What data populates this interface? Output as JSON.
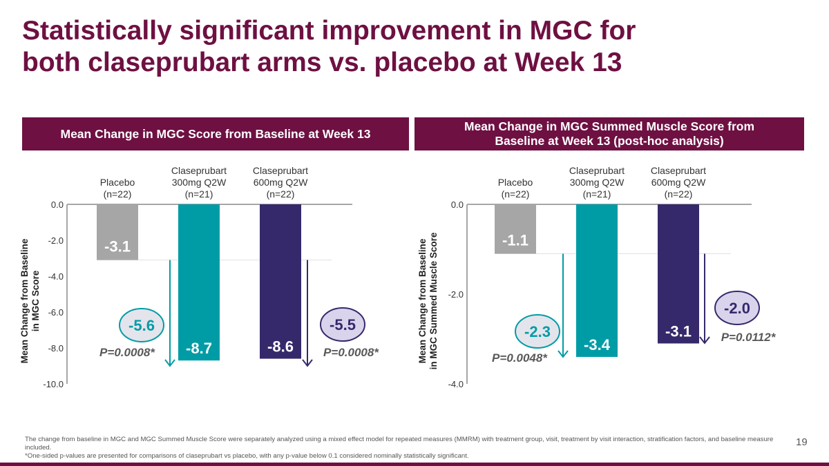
{
  "slide": {
    "title_line1": "Statistically significant improvement in MGC for",
    "title_line2": "both claseprubart arms vs. placebo at Week 13",
    "page_number": "19",
    "footnote_1": "The change from baseline in MGC and MGC Summed Muscle Score were separately analyzed using a mixed effect model for repeated measures (MMRM) with treatment group, visit, treatment by visit interaction, stratification factors, and baseline measure included.",
    "footnote_2": "*One-sided p-values are presented for comparisons of claseprubart vs placebo, with any p-value below 0.1 considered nominally statistically significant.",
    "brand_color": "#6e1042"
  },
  "chart_data": [
    {
      "type": "bar",
      "title": "Mean Change in MGC Score from Baseline at Week 13",
      "ylabel": [
        "Mean Change from Baseline",
        "in MGC Score"
      ],
      "ylim": [
        -10,
        0
      ],
      "yticks": [
        "0.0",
        "-2.0",
        "-4.0",
        "-6.0",
        "-8.0",
        "-10.0"
      ],
      "categories": [
        [
          "Placebo",
          "(n=22)"
        ],
        [
          "Claseprubart",
          "300mg Q2W",
          "(n=21)"
        ],
        [
          "Claseprubart",
          "600mg Q2W",
          "(n=22)"
        ]
      ],
      "values": [
        -3.1,
        -8.7,
        -8.6
      ],
      "value_labels": [
        "-3.1",
        "-8.7",
        "-8.6"
      ],
      "colors": [
        "#a6a6a6",
        "#009ca6",
        "#35296b"
      ],
      "differences": [
        {
          "arm": 1,
          "value": "-5.6",
          "p_value": "P=0.0008*"
        },
        {
          "arm": 2,
          "value": "-5.5",
          "p_value": "P=0.0008*"
        }
      ]
    },
    {
      "type": "bar",
      "title": "Mean Change in MGC Summed Muscle Score from Baseline at Week 13 (post-hoc analysis)",
      "title_line1": "Mean Change in MGC Summed Muscle Score from",
      "title_line2": "Baseline at Week 13 (post-hoc analysis)",
      "ylabel": [
        "Mean Change from Baseline",
        "in MGC Summed Muscle Score"
      ],
      "ylim": [
        -4,
        0
      ],
      "yticks": [
        "0.0",
        "-2.0",
        "-4.0"
      ],
      "categories": [
        [
          "Placebo",
          "(n=22)"
        ],
        [
          "Claseprubart",
          "300mg Q2W",
          "(n=21)"
        ],
        [
          "Claseprubart",
          "600mg Q2W",
          "(n=22)"
        ]
      ],
      "values": [
        -1.1,
        -3.4,
        -3.1
      ],
      "value_labels": [
        "-1.1",
        "-3.4",
        "-3.1"
      ],
      "colors": [
        "#a6a6a6",
        "#009ca6",
        "#35296b"
      ],
      "differences": [
        {
          "arm": 1,
          "value": "-2.3",
          "p_value": "P=0.0048*"
        },
        {
          "arm": 2,
          "value": "-2.0",
          "p_value": "P=0.0112*"
        }
      ]
    }
  ]
}
